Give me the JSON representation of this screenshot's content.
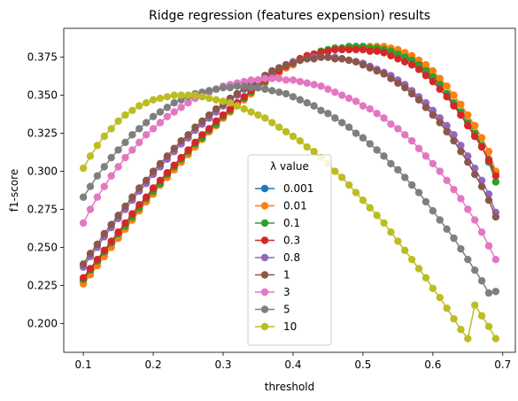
{
  "chart_data": {
    "type": "line",
    "title": "Ridge regression (features expension) results",
    "xlabel": "threshold",
    "ylabel": "f1-score",
    "xlim": [
      0.072,
      0.718
    ],
    "ylim": [
      0.181,
      0.394
    ],
    "xticks": [
      "0.1",
      "0.2",
      "0.3",
      "0.4",
      "0.5",
      "0.6",
      "0.7"
    ],
    "yticks": [
      "0.200",
      "0.225",
      "0.250",
      "0.275",
      "0.300",
      "0.325",
      "0.350",
      "0.375"
    ],
    "legend_title": "λ value",
    "legend_position": "lower center",
    "grid": false,
    "x": [
      0.1,
      0.11,
      0.12,
      0.13,
      0.14,
      0.15,
      0.16,
      0.17,
      0.18,
      0.19,
      0.2,
      0.21,
      0.22,
      0.23,
      0.24,
      0.25,
      0.26,
      0.27,
      0.28,
      0.29,
      0.3,
      0.31,
      0.32,
      0.33,
      0.34,
      0.35,
      0.36,
      0.37,
      0.38,
      0.39,
      0.4,
      0.41,
      0.42,
      0.43,
      0.44,
      0.45,
      0.46,
      0.47,
      0.48,
      0.49,
      0.5,
      0.51,
      0.52,
      0.53,
      0.54,
      0.55,
      0.56,
      0.57,
      0.58,
      0.59,
      0.6,
      0.61,
      0.62,
      0.63,
      0.64,
      0.65,
      0.66,
      0.67,
      0.68,
      0.69
    ],
    "series": [
      {
        "name": "0.001",
        "color": "#1f77b4",
        "values": [
          0.228,
          0.234,
          0.24,
          0.246,
          0.252,
          0.258,
          0.264,
          0.27,
          0.276,
          0.281,
          0.287,
          0.292,
          0.297,
          0.302,
          0.307,
          0.312,
          0.317,
          0.322,
          0.327,
          0.331,
          0.336,
          0.34,
          0.344,
          0.348,
          0.352,
          0.355,
          0.359,
          0.362,
          0.365,
          0.368,
          0.371,
          0.373,
          0.375,
          0.377,
          0.378,
          0.379,
          0.38,
          0.381,
          0.381,
          0.381,
          0.381,
          0.381,
          0.381,
          0.38,
          0.379,
          0.378,
          0.376,
          0.374,
          0.371,
          0.367,
          0.362,
          0.357,
          0.351,
          0.344,
          0.337,
          0.33,
          0.323,
          0.316,
          0.308,
          0.299
        ]
      },
      {
        "name": "0.01",
        "color": "#ff7f0e",
        "values": [
          0.226,
          0.232,
          0.238,
          0.244,
          0.25,
          0.256,
          0.262,
          0.268,
          0.274,
          0.28,
          0.285,
          0.291,
          0.296,
          0.301,
          0.306,
          0.311,
          0.316,
          0.321,
          0.326,
          0.33,
          0.335,
          0.339,
          0.343,
          0.347,
          0.351,
          0.355,
          0.358,
          0.362,
          0.365,
          0.368,
          0.37,
          0.373,
          0.375,
          0.377,
          0.378,
          0.379,
          0.38,
          0.381,
          0.382,
          0.382,
          0.382,
          0.382,
          0.382,
          0.382,
          0.381,
          0.38,
          0.378,
          0.376,
          0.373,
          0.37,
          0.366,
          0.361,
          0.356,
          0.35,
          0.344,
          0.337,
          0.33,
          0.322,
          0.313,
          0.3
        ]
      },
      {
        "name": "0.1",
        "color": "#2ca02c",
        "values": [
          0.229,
          0.235,
          0.241,
          0.247,
          0.253,
          0.259,
          0.264,
          0.27,
          0.276,
          0.282,
          0.287,
          0.292,
          0.298,
          0.303,
          0.308,
          0.313,
          0.318,
          0.322,
          0.327,
          0.331,
          0.336,
          0.34,
          0.344,
          0.348,
          0.352,
          0.356,
          0.359,
          0.363,
          0.366,
          0.369,
          0.371,
          0.374,
          0.376,
          0.377,
          0.379,
          0.38,
          0.381,
          0.381,
          0.382,
          0.382,
          0.382,
          0.381,
          0.381,
          0.38,
          0.379,
          0.377,
          0.375,
          0.373,
          0.37,
          0.366,
          0.362,
          0.357,
          0.351,
          0.345,
          0.339,
          0.332,
          0.325,
          0.317,
          0.306,
          0.293
        ]
      },
      {
        "name": "0.3",
        "color": "#d62728",
        "values": [
          0.23,
          0.236,
          0.242,
          0.248,
          0.254,
          0.26,
          0.266,
          0.272,
          0.278,
          0.283,
          0.289,
          0.294,
          0.299,
          0.304,
          0.309,
          0.314,
          0.319,
          0.324,
          0.328,
          0.333,
          0.337,
          0.341,
          0.345,
          0.349,
          0.353,
          0.357,
          0.36,
          0.363,
          0.366,
          0.369,
          0.372,
          0.374,
          0.376,
          0.377,
          0.378,
          0.379,
          0.38,
          0.38,
          0.38,
          0.38,
          0.38,
          0.379,
          0.379,
          0.378,
          0.376,
          0.374,
          0.372,
          0.37,
          0.367,
          0.363,
          0.359,
          0.354,
          0.349,
          0.343,
          0.337,
          0.33,
          0.323,
          0.316,
          0.307,
          0.297
        ]
      },
      {
        "name": "0.8",
        "color": "#9467bd",
        "values": [
          0.237,
          0.244,
          0.25,
          0.257,
          0.263,
          0.269,
          0.275,
          0.281,
          0.287,
          0.292,
          0.298,
          0.303,
          0.308,
          0.313,
          0.318,
          0.322,
          0.327,
          0.331,
          0.335,
          0.339,
          0.343,
          0.347,
          0.35,
          0.354,
          0.357,
          0.36,
          0.363,
          0.365,
          0.368,
          0.37,
          0.372,
          0.373,
          0.374,
          0.375,
          0.375,
          0.375,
          0.375,
          0.374,
          0.373,
          0.372,
          0.371,
          0.369,
          0.367,
          0.365,
          0.363,
          0.36,
          0.357,
          0.353,
          0.349,
          0.345,
          0.34,
          0.335,
          0.33,
          0.324,
          0.317,
          0.31,
          0.302,
          0.294,
          0.285,
          0.273
        ]
      },
      {
        "name": "1",
        "color": "#8c564b",
        "values": [
          0.239,
          0.246,
          0.252,
          0.259,
          0.265,
          0.271,
          0.277,
          0.283,
          0.289,
          0.294,
          0.3,
          0.305,
          0.31,
          0.315,
          0.32,
          0.324,
          0.329,
          0.333,
          0.337,
          0.341,
          0.344,
          0.348,
          0.351,
          0.355,
          0.358,
          0.36,
          0.363,
          0.366,
          0.368,
          0.37,
          0.371,
          0.373,
          0.374,
          0.374,
          0.375,
          0.375,
          0.374,
          0.374,
          0.373,
          0.372,
          0.37,
          0.368,
          0.366,
          0.364,
          0.361,
          0.358,
          0.355,
          0.351,
          0.347,
          0.342,
          0.337,
          0.332,
          0.326,
          0.32,
          0.313,
          0.306,
          0.298,
          0.29,
          0.281,
          0.27
        ]
      },
      {
        "name": "3",
        "color": "#e377c2",
        "values": [
          0.266,
          0.275,
          0.283,
          0.29,
          0.297,
          0.303,
          0.309,
          0.314,
          0.319,
          0.324,
          0.328,
          0.332,
          0.336,
          0.339,
          0.342,
          0.345,
          0.348,
          0.35,
          0.352,
          0.354,
          0.356,
          0.357,
          0.358,
          0.359,
          0.36,
          0.36,
          0.361,
          0.361,
          0.361,
          0.36,
          0.36,
          0.359,
          0.358,
          0.357,
          0.356,
          0.354,
          0.352,
          0.35,
          0.348,
          0.346,
          0.343,
          0.341,
          0.338,
          0.335,
          0.331,
          0.328,
          0.324,
          0.32,
          0.315,
          0.31,
          0.305,
          0.3,
          0.294,
          0.288,
          0.282,
          0.275,
          0.268,
          0.26,
          0.251,
          0.242
        ]
      },
      {
        "name": "5",
        "color": "#7f7f7f",
        "values": [
          0.283,
          0.29,
          0.297,
          0.303,
          0.309,
          0.314,
          0.319,
          0.324,
          0.328,
          0.332,
          0.336,
          0.339,
          0.342,
          0.345,
          0.347,
          0.349,
          0.351,
          0.352,
          0.353,
          0.354,
          0.355,
          0.355,
          0.356,
          0.356,
          0.355,
          0.355,
          0.354,
          0.353,
          0.352,
          0.351,
          0.349,
          0.347,
          0.345,
          0.343,
          0.34,
          0.338,
          0.335,
          0.332,
          0.329,
          0.325,
          0.322,
          0.318,
          0.314,
          0.31,
          0.305,
          0.301,
          0.296,
          0.291,
          0.286,
          0.28,
          0.274,
          0.268,
          0.262,
          0.256,
          0.249,
          0.242,
          0.235,
          0.228,
          0.22,
          0.221
        ]
      },
      {
        "name": "10",
        "color": "#bcbd22",
        "values": [
          0.302,
          0.31,
          0.317,
          0.323,
          0.328,
          0.333,
          0.337,
          0.34,
          0.343,
          0.345,
          0.347,
          0.348,
          0.349,
          0.35,
          0.35,
          0.35,
          0.35,
          0.349,
          0.348,
          0.347,
          0.346,
          0.345,
          0.343,
          0.341,
          0.339,
          0.337,
          0.335,
          0.332,
          0.329,
          0.326,
          0.323,
          0.32,
          0.316,
          0.313,
          0.309,
          0.305,
          0.3,
          0.296,
          0.291,
          0.286,
          0.281,
          0.276,
          0.271,
          0.266,
          0.26,
          0.254,
          0.248,
          0.242,
          0.236,
          0.23,
          0.223,
          0.217,
          0.21,
          0.203,
          0.196,
          0.19,
          0.212,
          0.205,
          0.198,
          0.19
        ]
      }
    ]
  }
}
